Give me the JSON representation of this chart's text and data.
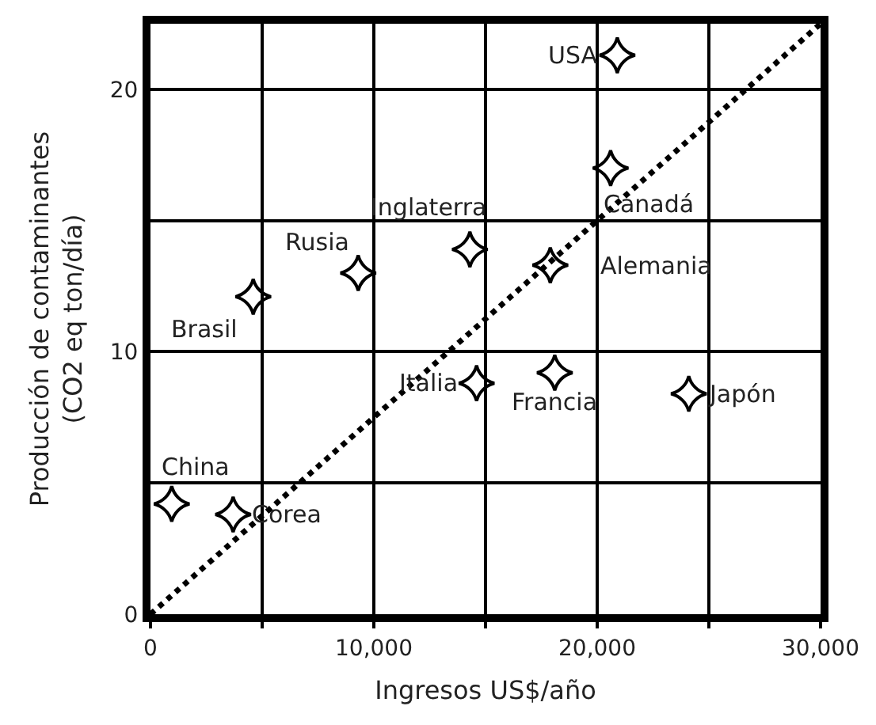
{
  "chart_data": {
    "type": "scatter",
    "xlabel": "Ingresos US$/año",
    "ylabel": "Producción de contaminantes (CO2 eq ton/día)",
    "xlim": [
      0,
      30000
    ],
    "ylim": [
      0,
      22.5
    ],
    "xticks": [
      0,
      {
        "value": 5000,
        "label": null
      },
      {
        "value": 10000,
        "label": "10,000"
      },
      {
        "value": 15000,
        "label": null
      },
      {
        "value": 20000,
        "label": "20,000"
      },
      {
        "value": 25000,
        "label": null
      },
      {
        "value": 30000,
        "label": "30,000"
      }
    ],
    "yticks": [
      0,
      {
        "value": 5,
        "label": null
      },
      10,
      {
        "value": 15,
        "label": null
      },
      20
    ],
    "grid": true,
    "legend": false,
    "marker": "star",
    "series": [
      {
        "name": "USA",
        "color": "#000000",
        "x": [
          20900
        ],
        "values": [
          21.3
        ]
      },
      {
        "name": "Canadá",
        "color": "#000000",
        "x": [
          20600
        ],
        "values": [
          17.0
        ]
      },
      {
        "name": "Inglaterra",
        "color": "#000000",
        "x": [
          14300
        ],
        "values": [
          13.9
        ]
      },
      {
        "name": "Alemania",
        "color": "#000000",
        "x": [
          17900
        ],
        "values": [
          13.3
        ]
      },
      {
        "name": "Rusia",
        "color": "#000000",
        "x": [
          9300
        ],
        "values": [
          13.0
        ]
      },
      {
        "name": "Brasil",
        "color": "#000000",
        "x": [
          4600
        ],
        "values": [
          12.1
        ]
      },
      {
        "name": "Italia",
        "color": "#000000",
        "x": [
          14600
        ],
        "values": [
          8.8
        ]
      },
      {
        "name": "Francia",
        "color": "#000000",
        "x": [
          18100
        ],
        "values": [
          9.2
        ]
      },
      {
        "name": "Japón",
        "color": "#000000",
        "x": [
          24100
        ],
        "values": [
          8.4
        ]
      },
      {
        "name": "China",
        "color": "#000000",
        "x": [
          950
        ],
        "values": [
          4.2
        ]
      },
      {
        "name": "Corea",
        "color": "#000000",
        "x": [
          3700
        ],
        "values": [
          3.8
        ]
      },
      {
        "type": "line",
        "color": "#000000",
        "line_style": "dotted",
        "marker": "none",
        "x": [
          0,
          30000
        ],
        "values": [
          0,
          22.5
        ]
      }
    ]
  }
}
